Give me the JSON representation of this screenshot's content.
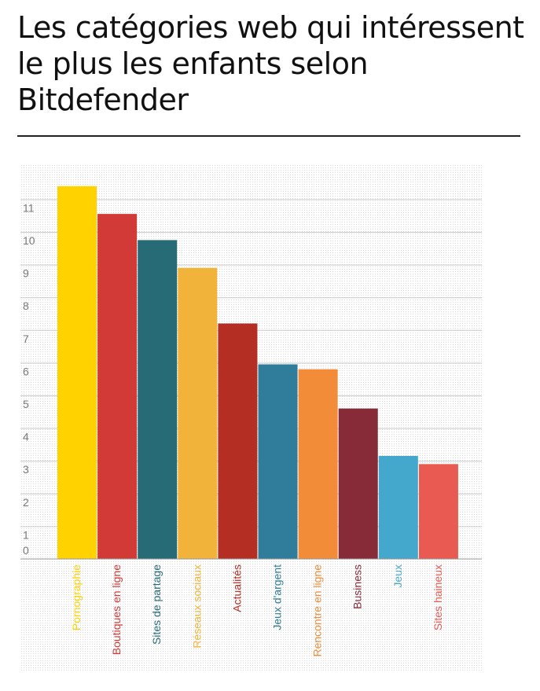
{
  "title": "Les catégories web qui intéressent le plus les enfants selon Bitdefender",
  "chart_data": {
    "type": "bar",
    "title": "Les catégories web qui intéressent le plus les enfants selon Bitdefender",
    "xlabel": "",
    "ylabel": "",
    "ylim": [
      0,
      12
    ],
    "yticks": [
      "0",
      "1",
      "2",
      "3",
      "4",
      "5",
      "6",
      "7",
      "8",
      "9",
      "10",
      "11"
    ],
    "grid": true,
    "categories": [
      "Pornographie",
      "Boutiques en ligne",
      "Sites de partage",
      "Réseaux sociaux",
      "Actualités",
      "Jeux d'argent",
      "Rencontre en ligne",
      "Business",
      "Jeux",
      "Sites haineux"
    ],
    "values": [
      11.4,
      10.55,
      9.75,
      8.9,
      7.2,
      5.95,
      5.8,
      4.6,
      3.15,
      2.9
    ],
    "colors": [
      "#FFD200",
      "#D23A38",
      "#276B77",
      "#F2B33A",
      "#B42E24",
      "#2F7D9A",
      "#F28C38",
      "#862B37",
      "#44A8CC",
      "#E85A52"
    ]
  }
}
